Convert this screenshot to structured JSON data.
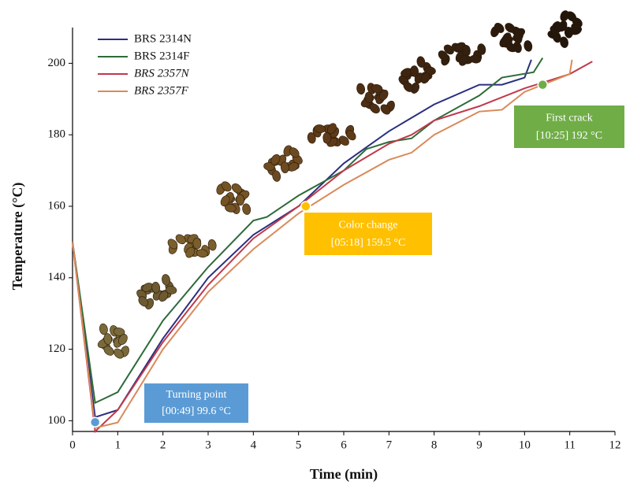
{
  "chart_data": {
    "type": "line",
    "xlabel": "Time (min)",
    "ylabel": "Temperature (°C)",
    "xlim": [
      0,
      12
    ],
    "xticks": [
      0,
      1,
      2,
      3,
      4,
      5,
      6,
      7,
      8,
      9,
      10,
      11,
      12
    ],
    "ylim": [
      97,
      210
    ],
    "yticks": [
      100,
      120,
      140,
      160,
      180,
      200
    ],
    "legend": "upper left",
    "series": [
      {
        "name": "BRS 2314N",
        "color": "#2b2f80",
        "x": [
          0,
          0.5,
          1,
          2,
          3,
          4,
          5,
          6,
          7,
          8,
          9,
          9.5,
          10,
          10.15
        ],
        "values": [
          150,
          101,
          103,
          123,
          140,
          152,
          160,
          172,
          181,
          188.5,
          194,
          194,
          196,
          201
        ]
      },
      {
        "name": "BRS 2314F",
        "color": "#2e6b3a",
        "x": [
          0,
          0.5,
          1,
          2,
          3,
          4,
          4.3,
          5,
          6,
          6.5,
          7,
          7.5,
          8,
          9,
          9.5,
          10.2,
          10.4
        ],
        "values": [
          150,
          105,
          108,
          128,
          143,
          156,
          157,
          163,
          170,
          176,
          178,
          179,
          184,
          191,
          196,
          197.5,
          201.5
        ]
      },
      {
        "name": "BRS 2357N",
        "color": "#c0394b",
        "x": [
          0,
          0.5,
          1,
          2,
          3,
          4,
          5,
          6,
          7,
          7.5,
          8,
          9,
          10,
          11,
          11.5
        ],
        "values": [
          150,
          97,
          103,
          122,
          138,
          151,
          160,
          170,
          177.5,
          180,
          184,
          188,
          193,
          197,
          200.5
        ]
      },
      {
        "name": "BRS 2357F",
        "color": "#d98a5a",
        "x": [
          0,
          0.5,
          1,
          2,
          3,
          4,
          5,
          6,
          7,
          7.5,
          8,
          9,
          9.5,
          10,
          11,
          11.05
        ],
        "values": [
          150,
          98,
          99.5,
          120,
          136,
          148,
          158,
          166,
          173,
          175,
          180,
          186.5,
          187,
          192,
          197,
          201
        ]
      }
    ],
    "annotations": [
      {
        "label": "Turning point",
        "text": "[00:49] 99.6 °C",
        "x": 0.5,
        "y": 99.6,
        "color": "#5b9bd5"
      },
      {
        "label": "Color change",
        "text": "[05:18] 159.5 °C",
        "x": 5.16,
        "y": 160,
        "color": "#ffc000"
      },
      {
        "label": "First crack",
        "text": "[10:25] 192 °C",
        "x": 10.4,
        "y": 194,
        "color": "#70ad47"
      }
    ]
  }
}
